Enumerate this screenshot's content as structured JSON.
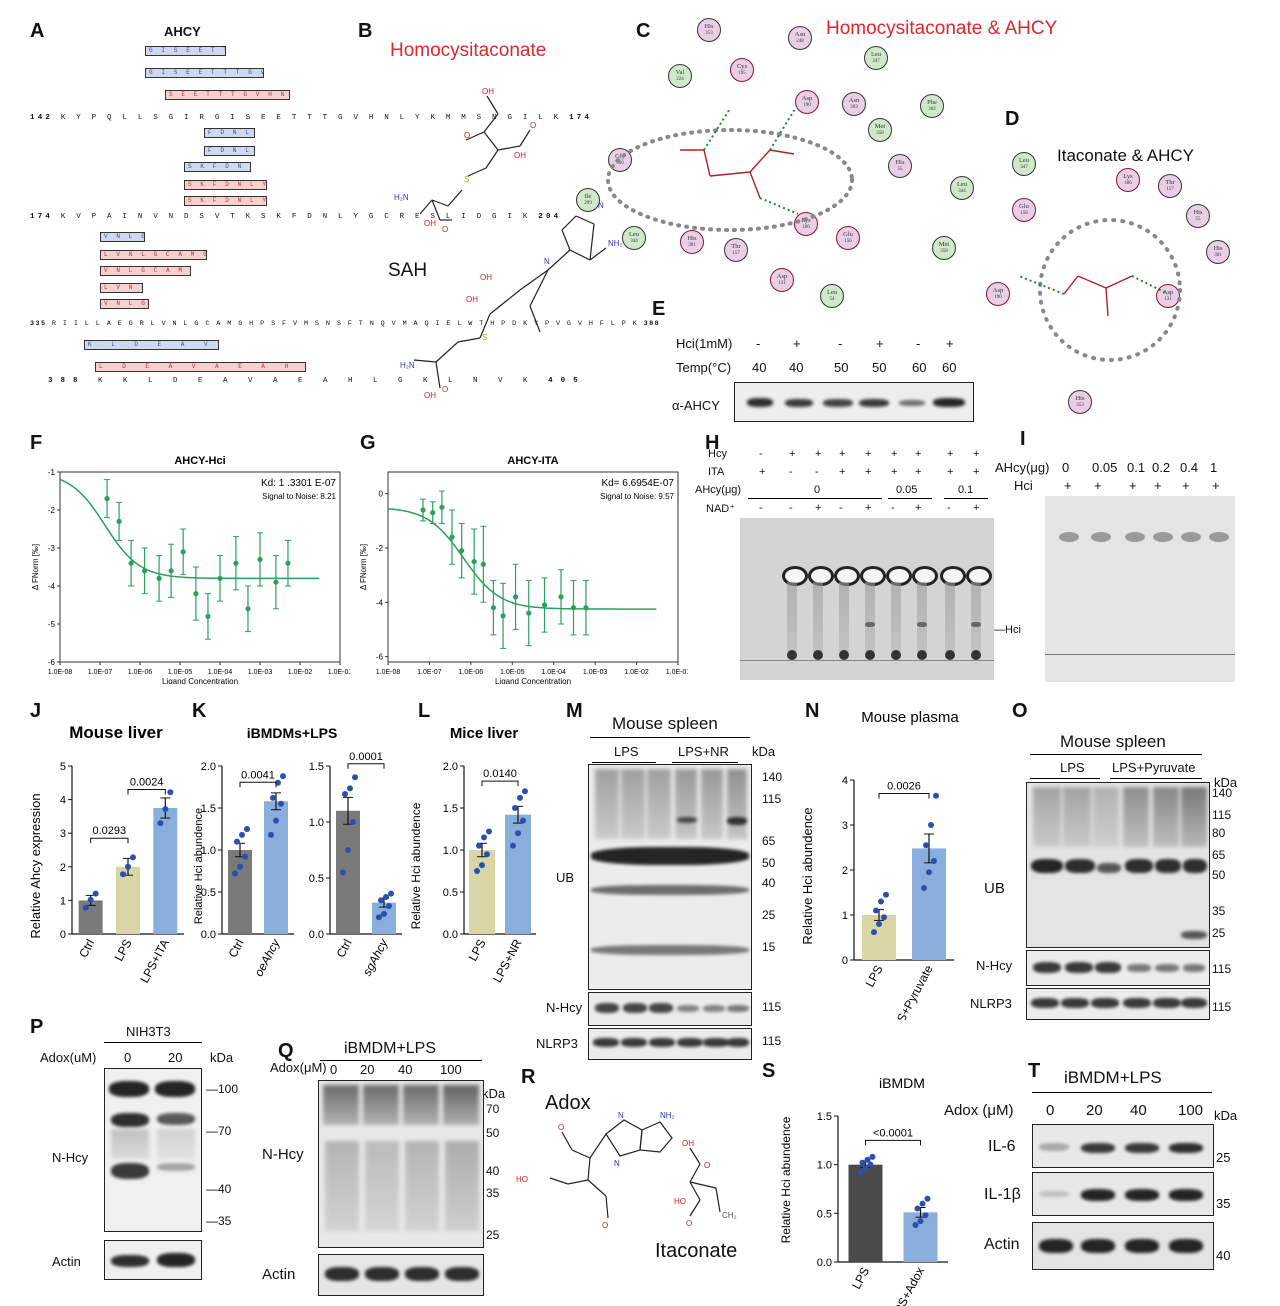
{
  "panels": {
    "A": "A",
    "B": "B",
    "C": "C",
    "D": "D",
    "E": "E",
    "F": "F",
    "G": "G",
    "H": "H",
    "I": "I",
    "J": "J",
    "K": "K",
    "L": "L",
    "M": "M",
    "N": "N",
    "O": "O",
    "P": "P",
    "Q": "Q",
    "R": "R",
    "S": "S",
    "T": "T"
  },
  "panelA": {
    "title": "AHCY",
    "seq1": {
      "start": "142",
      "seq": "K Y P Q L L S G I R G I S E E T T T G V H N L Y K M M S N G I L K",
      "end": "174"
    },
    "seq2": {
      "start": "174",
      "seq": "K V P A I N V N D S V T K S K F D N L Y G C R E S L I D G I K",
      "end": "204"
    },
    "seq3": {
      "start": "335",
      "seq": "R I I L L A E G R L V N L G C A M G H P S F V M S N S F T N Q V M A Q I E L W T H P D K Y P V G V H F L P K",
      "end": "388"
    },
    "seq4": {
      "start": "388",
      "seq": "K K L D E A V A E A H L G K L N V K",
      "end": "405"
    },
    "peps1": [
      "G I S E E T T",
      "G I S E E T T T G V H N",
      "S E E T T T G V H N L Y",
      "F D N L Y G G",
      "F D N L Y G G",
      "S K F D N L Y G G",
      "S K F D N L Y G G R",
      "S K F D N L Y G G R"
    ],
    "peps3": [
      "V N L G C A",
      "L V N L G C A M G H P S F V M S",
      "V N L G C A M G H P S F V M",
      "L V N L G C A",
      "V N L G C A"
    ],
    "peps4": [
      "K L D E A V A E",
      "L D E A V A E A H L G K"
    ]
  },
  "panelB": {
    "title": "Homocysitaconate",
    "sah": "SAH"
  },
  "panelC": {
    "title": "Homocysitaconate & AHCY",
    "residues": [
      {
        "name": "His",
        "num": "353"
      },
      {
        "name": "Asn",
        "num": "248"
      },
      {
        "name": "Leu",
        "num": "347"
      },
      {
        "name": "Cys",
        "num": "195"
      },
      {
        "name": "Val",
        "num": "224"
      },
      {
        "name": "Asp",
        "num": "190"
      },
      {
        "name": "Asn",
        "num": "303"
      },
      {
        "name": "Met",
        "num": "358"
      },
      {
        "name": "Phe",
        "num": "302"
      },
      {
        "name": "Gly",
        "num": "360"
      },
      {
        "name": "Ile",
        "num": "299"
      },
      {
        "name": "His",
        "num": "55"
      },
      {
        "name": "Leu",
        "num": "344"
      },
      {
        "name": "His",
        "num": "301"
      },
      {
        "name": "Thr",
        "num": "157"
      },
      {
        "name": "Lys",
        "num": "186"
      },
      {
        "name": "Glu",
        "num": "156"
      },
      {
        "name": "Leu",
        "num": "344"
      },
      {
        "name": "Met",
        "num": "358"
      },
      {
        "name": "Asp",
        "num": "131"
      },
      {
        "name": "Leu",
        "num": "54"
      }
    ]
  },
  "panelD": {
    "title": "Itaconate & AHCY",
    "residues": [
      {
        "name": "Leu",
        "num": "347"
      },
      {
        "name": "Lys",
        "num": "186"
      },
      {
        "name": "Thr",
        "num": "157"
      },
      {
        "name": "His",
        "num": "55"
      },
      {
        "name": "Glu",
        "num": "156"
      },
      {
        "name": "His",
        "num": "301"
      },
      {
        "name": "Asp",
        "num": "190"
      },
      {
        "name": "Asp",
        "num": "131"
      },
      {
        "name": "His",
        "num": "353"
      }
    ]
  },
  "panelE": {
    "row1_label": "Hci(1mM)",
    "row1": [
      "-",
      "+",
      "-",
      "+",
      "-",
      "+"
    ],
    "row2_label": "Temp(°C)",
    "row2": [
      "40",
      "40",
      "50",
      "50",
      "60",
      "60"
    ],
    "blot_label": "α-AHCY"
  },
  "panelF": {
    "title": "AHCY-Hci",
    "kd": "Kd: 1 .3301 E-07",
    "snr": "Signal to Noise: 8.21",
    "ylabel": "Δ FNorm [‰]",
    "xlabel": "Ligand Concentration",
    "yticks": [
      "-1",
      "-2",
      "-3",
      "-4",
      "-5",
      "-6"
    ],
    "xticks": [
      "1.0E-08",
      "1.0E-07",
      "1.0E-06",
      "1.0E-05",
      "1.0E-04",
      "1.0E-03",
      "1.0E-02",
      "1.0E-01"
    ]
  },
  "panelG": {
    "title": "AHCY-ITA",
    "kd": "Kd= 6.6954E-07",
    "snr": "Signal to Noise: 9.57",
    "ylabel": "Δ FNorm [‰]",
    "xlabel": "Ligand Concentration",
    "yticks": [
      "0",
      "-2",
      "-4",
      "-6"
    ],
    "xticks": [
      "1.0E-08",
      "1.0E-07",
      "1.0E-06",
      "1.0E-05",
      "1.0E-04",
      "1.0E-03",
      "1.0E-02",
      "1.0E-01"
    ]
  },
  "panelH": {
    "hcy_label": "Hcy",
    "hcy": [
      "-",
      "+",
      "+",
      "+",
      "+",
      "+",
      "+",
      "+",
      "+"
    ],
    "ita_label": "ITA",
    "ita": [
      "+",
      "-",
      "-",
      "+",
      "+",
      "+",
      "+",
      "+",
      "+"
    ],
    "ahcy_label": "AHcy(μg)",
    "ahcy_groups": [
      "0",
      "0.05",
      "0.1"
    ],
    "nad_label": "NAD⁺",
    "nad": [
      "-",
      "-",
      "+",
      "-",
      "+",
      "-",
      "+",
      "-",
      "+"
    ],
    "hci_mark": "Hci"
  },
  "panelI": {
    "ahcy_label": "AHcy(μg)",
    "ahcy": [
      "0",
      "0.05",
      "0.1",
      "0.2",
      "0.4",
      "1"
    ],
    "hci_label": "Hci",
    "hci": [
      "+",
      "+",
      "+",
      "+",
      "+",
      "+"
    ]
  },
  "panelJ": {
    "title": "Mouse liver",
    "ylabel": "Relative Ahcy expression",
    "yticks": [
      "0",
      "1",
      "2",
      "3",
      "4",
      "5"
    ],
    "categories": [
      "Ctrl",
      "LPS",
      "LPS+ITA"
    ],
    "pvals": [
      "0.0293",
      "0.0024"
    ]
  },
  "panelK": {
    "title": "iBMDMs+LPS",
    "ylabel": "Relative Hci abundence",
    "yticks1": [
      "0.0",
      "0.5",
      "1.0",
      "1.5",
      "2.0"
    ],
    "yticks2": [
      "0.0",
      "0.5",
      "1.0",
      "1.5"
    ],
    "cats1": [
      "Ctrl",
      "oeAhcy"
    ],
    "cats2": [
      "Ctrl",
      "sgAhcy"
    ],
    "pvals": [
      "0.0041",
      "0.0001"
    ]
  },
  "panelL": {
    "title": "Mice liver",
    "ylabel": "Relative Hci abundence",
    "yticks": [
      "0.0",
      "0.5",
      "1.0",
      "1.5",
      "2.0"
    ],
    "categories": [
      "LPS",
      "LPS+NR"
    ],
    "pval": "0.0140"
  },
  "panelM": {
    "title": "Mouse spleen",
    "groups": [
      "LPS",
      "LPS+NR"
    ],
    "kda": "kDa",
    "markers": [
      "140",
      "115",
      "65",
      "50",
      "40",
      "25",
      "15"
    ],
    "rows": [
      "UB",
      "N-Hcy",
      "NLRP3"
    ],
    "row_markers": [
      "115",
      "115"
    ]
  },
  "panelN": {
    "title": "Mouse plasma",
    "ylabel": "Relative Hci abundence",
    "yticks": [
      "0",
      "1",
      "2",
      "3",
      "4"
    ],
    "categories": [
      "LPS",
      "LPS+Pyruvate"
    ],
    "pval": "0.0026"
  },
  "panelO": {
    "title": "Mouse spleen",
    "groups": [
      "LPS",
      "LPS+Pyruvate"
    ],
    "kda": "kDa",
    "markers": [
      "140",
      "115",
      "80",
      "65",
      "50",
      "35",
      "25"
    ],
    "rows": [
      "UB",
      "N-Hcy",
      "NLRP3"
    ],
    "row_markers": [
      "115",
      "115"
    ]
  },
  "panelP": {
    "title": "NIH3T3",
    "adox_label": "Adox(uM)",
    "adox": [
      "0",
      "20"
    ],
    "kda": "kDa",
    "markers": [
      "100",
      "70",
      "40",
      "35"
    ],
    "rows": [
      "N-Hcy",
      "Actin"
    ]
  },
  "panelQ": {
    "title": "iBMDM+LPS",
    "adox_label": "Adox(μM)",
    "adox": [
      "0",
      "20",
      "40",
      "100"
    ],
    "kda": "kDa",
    "markers": [
      "70",
      "50",
      "40",
      "35",
      "25"
    ],
    "rows": [
      "N-Hcy",
      "Actin"
    ]
  },
  "panelR": {
    "adox": "Adox",
    "itaconate": "Itaconate"
  },
  "panelS": {
    "title": "iBMDM",
    "ylabel": "Relative Hci abundence",
    "yticks": [
      "0.0",
      "0.5",
      "1.0",
      "1.5"
    ],
    "categories": [
      "LPS",
      "LPS+Adox"
    ],
    "pval": "<0.0001"
  },
  "panelT": {
    "title": "iBMDM+LPS",
    "adox_label": "Adox (μM)",
    "adox": [
      "0",
      "20",
      "40",
      "100"
    ],
    "kda": "kDa",
    "rows": [
      "IL-6",
      "IL-1β",
      "Actin"
    ],
    "markers": [
      "25",
      "35",
      "40"
    ]
  },
  "chart_data": [
    {
      "id": "F",
      "type": "scatter",
      "title": "AHCY-Hci",
      "xlabel": "Ligand Concentration",
      "ylabel": "Δ FNorm [‰]",
      "xscale": "log",
      "xlim": [
        1e-08,
        0.1
      ],
      "ylim": [
        -6,
        -1
      ],
      "x": [
        1.5e-07,
        3e-07,
        6e-07,
        1.3e-06,
        3e-06,
        6e-06,
        1.2e-05,
        2.5e-05,
        5e-05,
        0.0001,
        0.00025,
        0.0005,
        0.001,
        0.0025,
        0.005
      ],
      "y": [
        -1.7,
        -2.3,
        -3.4,
        -3.6,
        -3.8,
        -3.6,
        -3.1,
        -4.2,
        -4.8,
        -3.8,
        -3.4,
        -4.6,
        -3.3,
        -3.9,
        -3.4
      ],
      "err": [
        0.5,
        0.5,
        0.6,
        0.6,
        0.6,
        0.7,
        0.6,
        0.7,
        0.6,
        0.6,
        0.7,
        0.6,
        0.7,
        0.7,
        0.6
      ],
      "fit": {
        "top": -1.0,
        "bottom": -3.8,
        "kd": 1.33e-07
      }
    },
    {
      "id": "G",
      "type": "scatter",
      "title": "AHCY-ITA",
      "xlabel": "Ligand Concentration",
      "ylabel": "Δ FNorm [‰]",
      "xscale": "log",
      "xlim": [
        1e-08,
        0.1
      ],
      "ylim": [
        -6.2,
        0.8
      ],
      "x": [
        7e-08,
        1.2e-07,
        2e-07,
        3.5e-07,
        6e-07,
        1.2e-06,
        2e-06,
        3.5e-06,
        6e-06,
        1.2e-05,
        2.5e-05,
        6e-05,
        0.00015,
        0.0003,
        0.0006
      ],
      "y": [
        -0.6,
        -0.7,
        -0.5,
        -1.6,
        -2.1,
        -2.5,
        -2.6,
        -4.2,
        -4.5,
        -3.8,
        -4.4,
        -4.1,
        -3.8,
        -4.2,
        -4.2
      ],
      "err": [
        0.4,
        0.4,
        0.6,
        1.0,
        1.0,
        1.2,
        1.4,
        1.0,
        1.2,
        1.2,
        1.2,
        1.0,
        1.0,
        1.0,
        1.0
      ],
      "fit": {
        "top": -0.5,
        "bottom": -4.25,
        "kd": 6.7e-07
      }
    },
    {
      "id": "J",
      "type": "bar",
      "title": "Mouse liver",
      "categories": [
        "Ctrl",
        "LPS",
        "LPS+ITA"
      ],
      "values": [
        1.0,
        2.0,
        3.75
      ],
      "sem": [
        0.15,
        0.25,
        0.3
      ],
      "ylim": [
        0,
        5
      ],
      "colors": [
        "#7a7a7a",
        "#d8d6a4",
        "#8aaedb"
      ],
      "points": [
        [
          0.78,
          1.02,
          1.2
        ],
        [
          1.78,
          2.0,
          2.28
        ],
        [
          3.3,
          3.72,
          4.22
        ]
      ]
    },
    {
      "id": "K1",
      "type": "bar",
      "categories": [
        "Ctrl",
        "oeAhcy"
      ],
      "values": [
        1.0,
        1.58
      ],
      "sem": [
        0.08,
        0.1
      ],
      "ylim": [
        0,
        2.0
      ],
      "colors": [
        "#7a7a7a",
        "#8aaedb"
      ],
      "points": [
        [
          0.72,
          0.8,
          0.92,
          1.1,
          1.18,
          1.25
        ],
        [
          1.18,
          1.35,
          1.55,
          1.62,
          1.8,
          1.88
        ]
      ]
    },
    {
      "id": "K2",
      "type": "bar",
      "categories": [
        "Ctrl",
        "sgAhcy"
      ],
      "values": [
        1.1,
        0.28
      ],
      "sem": [
        0.12,
        0.04
      ],
      "ylim": [
        0,
        1.5
      ],
      "colors": [
        "#7a7a7a",
        "#8aaedb"
      ],
      "points": [
        [
          0.55,
          0.75,
          1.0,
          1.25,
          1.3,
          1.4
        ],
        [
          0.15,
          0.18,
          0.25,
          0.3,
          0.33,
          0.36
        ]
      ]
    },
    {
      "id": "L",
      "type": "bar",
      "title": "Mice liver",
      "categories": [
        "LPS",
        "LPS+NR"
      ],
      "values": [
        1.0,
        1.42
      ],
      "sem": [
        0.08,
        0.1
      ],
      "ylim": [
        0,
        2.0
      ],
      "colors": [
        "#d8d6a4",
        "#8aaedb"
      ],
      "points": [
        [
          0.75,
          0.82,
          0.95,
          1.05,
          1.15,
          1.22
        ],
        [
          1.05,
          1.2,
          1.35,
          1.5,
          1.62,
          1.7
        ]
      ]
    },
    {
      "id": "N",
      "type": "bar",
      "title": "Mouse plasma",
      "categories": [
        "LPS",
        "LPS+Pyruvate"
      ],
      "values": [
        1.0,
        2.48
      ],
      "sem": [
        0.12,
        0.32
      ],
      "ylim": [
        0,
        4
      ],
      "colors": [
        "#d8d6a4",
        "#8aaedb"
      ],
      "points": [
        [
          0.62,
          0.8,
          0.95,
          1.1,
          1.3,
          1.45
        ],
        [
          1.6,
          1.95,
          2.2,
          2.55,
          3.0,
          3.65
        ]
      ]
    },
    {
      "id": "S",
      "type": "bar",
      "title": "iBMDM",
      "categories": [
        "LPS",
        "LPS+Adox"
      ],
      "values": [
        1.0,
        0.51
      ],
      "sem": [
        0.03,
        0.05
      ],
      "ylim": [
        0,
        1.5
      ],
      "colors": [
        "#4a4a4a",
        "#8aaedb"
      ],
      "points": [
        [
          0.92,
          0.96,
          1.0,
          1.02,
          1.05,
          1.08
        ],
        [
          0.38,
          0.42,
          0.48,
          0.55,
          0.6,
          0.65
        ]
      ]
    }
  ]
}
